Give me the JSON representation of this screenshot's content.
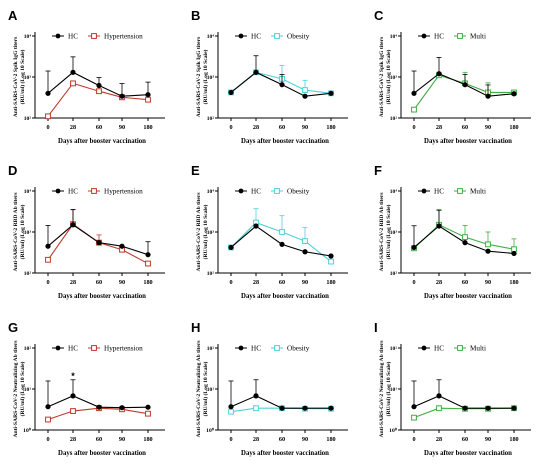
{
  "figure": {
    "colors": {
      "HC": "#000000",
      "Hypertension": "#c0392b",
      "Obesity": "#4fd1d9",
      "Multi": "#3cb043",
      "axis": "#000000"
    }
  },
  "chart_data": [
    {
      "letter": "A",
      "type": "line",
      "ylabel": [
        "Anti-SARS-CoV-2 Spik IgG titers",
        "(RU/ml) (Log 10 Scale)"
      ],
      "xlabel": "Days after booster vaccination",
      "x": [
        0,
        28,
        60,
        90,
        180
      ],
      "x_tick_labels": [
        "0",
        "28",
        "60",
        "90",
        "180"
      ],
      "y_tick_labels": [
        "10²",
        "10³",
        "10⁴"
      ],
      "yscale": "log",
      "ylim": [
        100,
        10000
      ],
      "ref_color": "HC",
      "cmp_color": "Hypertension",
      "series": [
        {
          "name": "HC",
          "values": [
            400,
            1300,
            620,
            340,
            370
          ],
          "err": [
            1000,
            1800,
            350,
            350,
            380
          ]
        },
        {
          "name": "Hypertension",
          "values": [
            110,
            700,
            450,
            320,
            280
          ],
          "err": [
            0,
            0,
            0,
            0,
            0
          ]
        }
      ]
    },
    {
      "letter": "B",
      "type": "line",
      "ylabel": [
        "Anti-SARS-CoV-2 Spik IgG titers",
        "(RU/ml) (Log 10 Scale)"
      ],
      "xlabel": "Days after booster vaccination",
      "x": [
        0,
        28,
        60,
        90,
        180
      ],
      "x_tick_labels": [
        "0",
        "28",
        "60",
        "90",
        "180"
      ],
      "y_tick_labels": [
        "10²",
        "10³",
        "10⁴"
      ],
      "yscale": "log",
      "ylim": [
        100,
        10000
      ],
      "ref_color": "HC",
      "cmp_color": "Obesity",
      "series": [
        {
          "name": "HC",
          "values": [
            420,
            1300,
            650,
            340,
            400
          ],
          "err": [
            0,
            2000,
            500,
            0,
            0
          ]
        },
        {
          "name": "Obesity",
          "values": [
            420,
            1300,
            900,
            480,
            400
          ],
          "err": [
            0,
            0,
            1000,
            350,
            0
          ]
        }
      ]
    },
    {
      "letter": "C",
      "type": "line",
      "ylabel": [
        "Anti-SARS-CoV-2 Spik IgG titers",
        "(RU/ml) (Log 10 Scale)"
      ],
      "xlabel": "Days after booster vaccination",
      "x": [
        0,
        28,
        60,
        90,
        180
      ],
      "x_tick_labels": [
        "0",
        "28",
        "60",
        "90",
        "180"
      ],
      "y_tick_labels": [
        "10²",
        "10³",
        "10⁴"
      ],
      "yscale": "log",
      "ylim": [
        100,
        10000
      ],
      "ref_color": "HC",
      "cmp_color": "Multi",
      "series": [
        {
          "name": "HC",
          "values": [
            400,
            1200,
            650,
            340,
            390
          ],
          "err": [
            1000,
            1800,
            500,
            300,
            0
          ]
        },
        {
          "name": "Multi",
          "values": [
            160,
            1100,
            700,
            420,
            420
          ],
          "err": [
            0,
            0,
            600,
            300,
            0
          ]
        }
      ]
    },
    {
      "letter": "D",
      "type": "line",
      "ylabel": [
        "Anti-SARS-CoV-2 RBD Ab titers",
        "(RU/ml) (Log 10 Scale)"
      ],
      "xlabel": "Days after booster vaccination",
      "x": [
        0,
        28,
        60,
        90,
        180
      ],
      "x_tick_labels": [
        "0",
        "28",
        "60",
        "90",
        "180"
      ],
      "y_tick_labels": [
        "10²",
        "10³",
        "10⁴"
      ],
      "yscale": "log",
      "ylim": [
        100,
        10000
      ],
      "ref_color": "HC",
      "cmp_color": "Hypertension",
      "series": [
        {
          "name": "HC",
          "values": [
            450,
            1500,
            550,
            450,
            280
          ],
          "err": [
            1000,
            2000,
            0,
            0,
            300
          ]
        },
        {
          "name": "Hypertension",
          "values": [
            210,
            1550,
            550,
            370,
            170
          ],
          "err": [
            0,
            2000,
            300,
            0,
            0
          ]
        }
      ]
    },
    {
      "letter": "E",
      "type": "line",
      "ylabel": [
        "Anti-SARS-CoV-2 RBD Ab titers",
        "(RU/ml) (Log 10 Scale)"
      ],
      "xlabel": "Days after booster vaccination",
      "x": [
        0,
        28,
        60,
        90,
        180
      ],
      "x_tick_labels": [
        "0",
        "28",
        "60",
        "90",
        "180"
      ],
      "y_tick_labels": [
        "10²",
        "10³",
        "10⁴"
      ],
      "yscale": "log",
      "ylim": [
        100,
        10000
      ],
      "ref_color": "HC",
      "cmp_color": "Obesity",
      "series": [
        {
          "name": "HC",
          "values": [
            420,
            1400,
            500,
            330,
            260
          ],
          "err": [
            0,
            0,
            0,
            0,
            0
          ]
        },
        {
          "name": "Obesity",
          "values": [
            420,
            1700,
            1000,
            600,
            190
          ],
          "err": [
            0,
            2000,
            1500,
            700,
            0
          ]
        }
      ]
    },
    {
      "letter": "F",
      "type": "line",
      "ylabel": [
        "Anti-SARS-CoV-2 RBD Ab titers",
        "(RU/ml) (Log 10 Scale)"
      ],
      "xlabel": "Days after booster vaccination",
      "x": [
        0,
        28,
        60,
        90,
        180
      ],
      "x_tick_labels": [
        "0",
        "28",
        "60",
        "90",
        "180"
      ],
      "y_tick_labels": [
        "10²",
        "10³",
        "10⁴"
      ],
      "yscale": "log",
      "ylim": [
        100,
        10000
      ],
      "ref_color": "HC",
      "cmp_color": "Multi",
      "series": [
        {
          "name": "HC",
          "values": [
            420,
            1400,
            550,
            340,
            300
          ],
          "err": [
            1000,
            2000,
            0,
            0,
            0
          ]
        },
        {
          "name": "Multi",
          "values": [
            400,
            1500,
            750,
            500,
            380
          ],
          "err": [
            0,
            2000,
            700,
            500,
            300
          ]
        }
      ]
    },
    {
      "letter": "G",
      "type": "line",
      "ylabel": [
        "Anti-SARS-CoV-2 Neutralizing Ab titers",
        "(RU/ml) (Log 10 Scale)"
      ],
      "xlabel": "Days after booster vaccination",
      "x": [
        0,
        28,
        60,
        90,
        180
      ],
      "x_tick_labels": [
        "0",
        "28",
        "60",
        "90",
        "180"
      ],
      "y_tick_labels": [
        "10⁰",
        "10¹",
        "10²"
      ],
      "yscale": "log",
      "ylim": [
        1,
        100
      ],
      "ref_color": "HC",
      "cmp_color": "Hypertension",
      "annotation": {
        "x": 28,
        "text": "*"
      },
      "series": [
        {
          "name": "HC",
          "values": [
            3.7,
            6.8,
            3.6,
            3.5,
            3.6
          ],
          "err": [
            12,
            10,
            0,
            0,
            0
          ]
        },
        {
          "name": "Hypertension",
          "values": [
            1.8,
            2.9,
            3.4,
            3.2,
            2.5
          ],
          "err": [
            0,
            0,
            0,
            0,
            0
          ]
        }
      ]
    },
    {
      "letter": "H",
      "type": "line",
      "ylabel": [
        "Anti-SARS-CoV-2 Neutralizing Ab titers",
        "(RU/ml) (Log 10 Scale)"
      ],
      "xlabel": "Days after booster vaccination",
      "x": [
        0,
        28,
        60,
        90,
        180
      ],
      "x_tick_labels": [
        "0",
        "28",
        "60",
        "90",
        "180"
      ],
      "y_tick_labels": [
        "10⁰",
        "10¹",
        "10²"
      ],
      "yscale": "log",
      "ylim": [
        1,
        100
      ],
      "ref_color": "HC",
      "cmp_color": "Obesity",
      "series": [
        {
          "name": "HC",
          "values": [
            3.7,
            6.8,
            3.4,
            3.4,
            3.4
          ],
          "err": [
            12,
            10,
            0,
            0,
            0
          ]
        },
        {
          "name": "Obesity",
          "values": [
            2.8,
            3.4,
            3.4,
            3.3,
            3.3
          ],
          "err": [
            0,
            0,
            0,
            0,
            0
          ]
        }
      ]
    },
    {
      "letter": "I",
      "type": "line",
      "ylabel": [
        "Anti-SARS-CoV-2 Neutralizing Ab titers",
        "(RU/ml) (Log 10 Scale)"
      ],
      "xlabel": "Days after booster vaccination",
      "x": [
        0,
        28,
        60,
        90,
        180
      ],
      "x_tick_labels": [
        "0",
        "28",
        "60",
        "90",
        "180"
      ],
      "y_tick_labels": [
        "10⁰",
        "10¹",
        "10²"
      ],
      "yscale": "log",
      "ylim": [
        1,
        100
      ],
      "ref_color": "HC",
      "cmp_color": "Multi",
      "series": [
        {
          "name": "HC",
          "values": [
            3.7,
            6.8,
            3.4,
            3.4,
            3.4
          ],
          "err": [
            12,
            10,
            0,
            0,
            0
          ]
        },
        {
          "name": "Multi",
          "values": [
            2.0,
            3.4,
            3.3,
            3.3,
            3.4
          ],
          "err": [
            0,
            0,
            0,
            0,
            0
          ]
        }
      ]
    }
  ]
}
